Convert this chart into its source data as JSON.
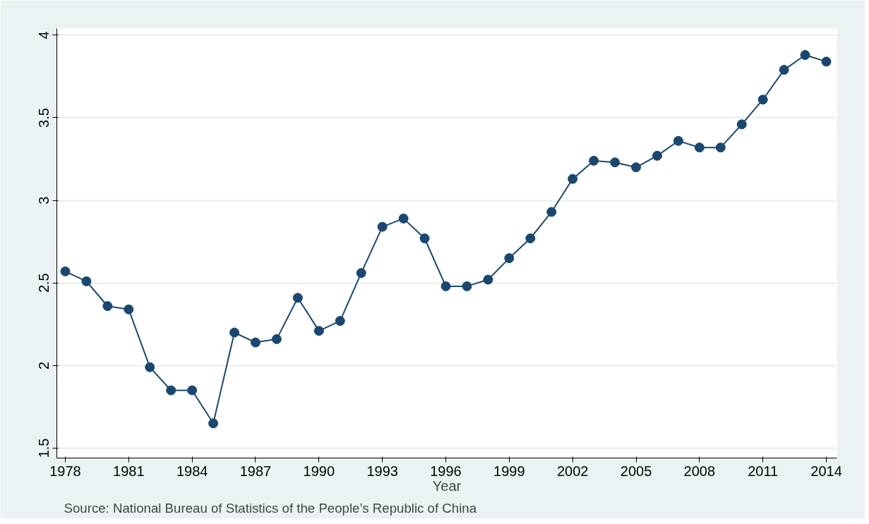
{
  "chart_data": {
    "type": "line",
    "xlabel": "Year",
    "annotations": [
      "Source: National Bureau of Statistics of the People’s Republic of China"
    ],
    "x": [
      1978,
      1979,
      1980,
      1981,
      1982,
      1983,
      1984,
      1985,
      1986,
      1987,
      1988,
      1989,
      1990,
      1991,
      1992,
      1993,
      1994,
      1995,
      1996,
      1997,
      1998,
      1999,
      2000,
      2001,
      2002,
      2003,
      2004,
      2005,
      2006,
      2007,
      2008,
      2009,
      2010,
      2011,
      2012,
      2013,
      2014
    ],
    "series": [
      {
        "color": "#1a476f",
        "values": [
          2.57,
          2.51,
          2.36,
          2.34,
          1.99,
          1.85,
          1.85,
          1.65,
          2.2,
          2.14,
          2.16,
          2.41,
          2.21,
          2.27,
          2.56,
          2.84,
          2.89,
          2.77,
          2.48,
          2.48,
          2.52,
          2.65,
          2.77,
          2.93,
          3.13,
          3.24,
          3.23,
          3.2,
          3.27,
          3.36,
          3.32,
          3.32,
          3.46,
          3.61,
          3.79,
          3.88,
          3.84
        ]
      }
    ],
    "xlim": [
      1977.6,
      2014.5
    ],
    "ylim": [
      1.44,
      4.04
    ],
    "xticks": [
      1978,
      1981,
      1984,
      1987,
      1990,
      1993,
      1996,
      1999,
      2002,
      2005,
      2008,
      2011,
      2014
    ],
    "yticks": [
      1.5,
      2,
      {
        "value": 2.5,
        "label": "2.5"
      },
      3,
      {
        "value": 3.5,
        "label": "3.5"
      },
      4
    ],
    "grid": "y",
    "marker": "circle",
    "line_style": "solid"
  }
}
